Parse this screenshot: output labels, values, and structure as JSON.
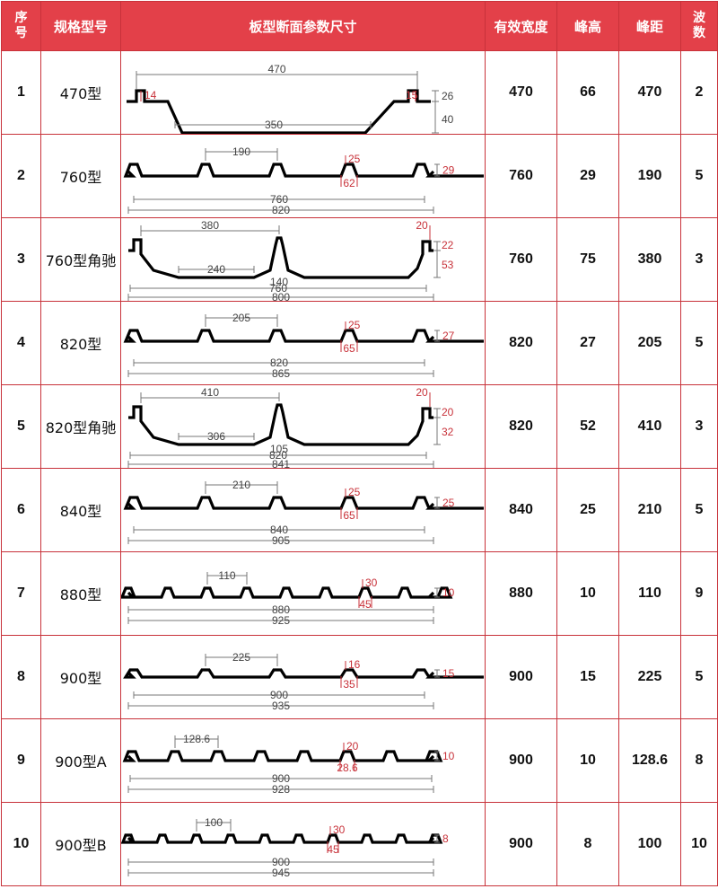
{
  "headers": {
    "no": "序号",
    "model": "规格型号",
    "section": "板型断面参数尺寸",
    "width": "有效宽度",
    "height": "峰高",
    "pitch": "峰距",
    "waves": "波数"
  },
  "colors": {
    "header_bg": "#e34049",
    "border": "#c8323a",
    "dim_text": "#c8323a"
  },
  "rows": [
    {
      "no": "1",
      "model": "470型",
      "width": "470",
      "height": "66",
      "pitch": "470",
      "waves": "2",
      "dims": {
        "a": "470",
        "b": "350",
        "c": "14",
        "d": "15",
        "e": "26",
        "f": "40"
      }
    },
    {
      "no": "2",
      "model": "760型",
      "width": "760",
      "height": "29",
      "pitch": "190",
      "waves": "5",
      "dims": {
        "a": "190",
        "b": "25",
        "c": "29",
        "d": "62",
        "e": "760",
        "f": "820"
      }
    },
    {
      "no": "3",
      "model": "760型角驰",
      "width": "760",
      "height": "75",
      "pitch": "380",
      "waves": "3",
      "dims": {
        "a": "380",
        "b": "20",
        "c": "22",
        "d": "53",
        "e": "240",
        "f": "140",
        "g": "760",
        "h": "800"
      }
    },
    {
      "no": "4",
      "model": "820型",
      "width": "820",
      "height": "27",
      "pitch": "205",
      "waves": "5",
      "dims": {
        "a": "205",
        "b": "25",
        "c": "27",
        "d": "65",
        "e": "820",
        "f": "865"
      }
    },
    {
      "no": "5",
      "model": "820型角驰",
      "width": "820",
      "height": "52",
      "pitch": "410",
      "waves": "3",
      "dims": {
        "a": "410",
        "b": "20",
        "c": "20",
        "d": "32",
        "e": "306",
        "f": "105",
        "g": "820",
        "h": "841"
      }
    },
    {
      "no": "6",
      "model": "840型",
      "width": "840",
      "height": "25",
      "pitch": "210",
      "waves": "5",
      "dims": {
        "a": "210",
        "b": "25",
        "c": "25",
        "d": "65",
        "e": "840",
        "f": "905"
      }
    },
    {
      "no": "7",
      "model": "880型",
      "width": "880",
      "height": "10",
      "pitch": "110",
      "waves": "9",
      "dims": {
        "a": "110",
        "b": "30",
        "c": "10",
        "d": "45",
        "e": "880",
        "f": "925"
      }
    },
    {
      "no": "8",
      "model": "900型",
      "width": "900",
      "height": "15",
      "pitch": "225",
      "waves": "5",
      "dims": {
        "a": "225",
        "b": "16",
        "c": "15",
        "d": "35",
        "e": "900",
        "f": "935"
      }
    },
    {
      "no": "9",
      "model": "900型A",
      "width": "900",
      "height": "10",
      "pitch": "128.6",
      "waves": "8",
      "dims": {
        "a": "128.6",
        "b": "20",
        "c": "10",
        "d": "28.6",
        "e": "900",
        "f": "928"
      }
    },
    {
      "no": "10",
      "model": "900型B",
      "width": "900",
      "height": "8",
      "pitch": "100",
      "waves": "10",
      "dims": {
        "a": "100",
        "b": "30",
        "c": "8",
        "d": "45",
        "e": "900",
        "f": "945"
      }
    }
  ]
}
